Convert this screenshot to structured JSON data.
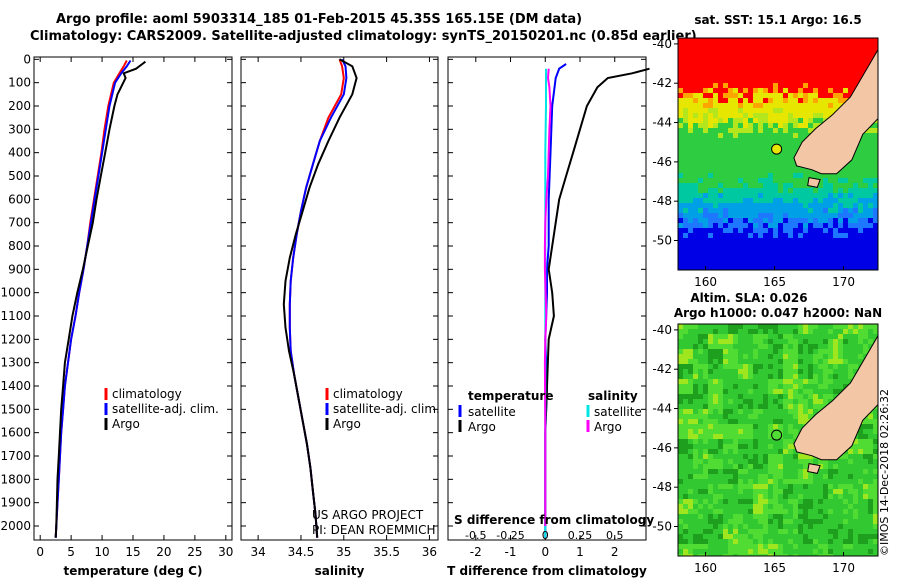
{
  "header": {
    "line1": "Argo profile: aoml 5903314_185 01-Feb-2015 45.35S 165.15E (DM data)",
    "line2": "Climatology: CARS2009. Satellite-adjusted climatology: synTS_20150201.nc (0.85d earlier)"
  },
  "credit": {
    "line1": "US ARGO PROJECT",
    "line2": "PI: DEAN ROEMMICH"
  },
  "stamp": "©IMOS 14-Dec-2018 02:26:32",
  "colors": {
    "climatology": "#ff0000",
    "satellite": "#0000ff",
    "argo": "#000000",
    "sat_salinity": "#00e5e5",
    "argo_salinity": "#ff00ff",
    "land": "#f3c6a5"
  },
  "chart_data": [
    {
      "type": "line",
      "name": "temperature-profile",
      "xlabel": "temperature (deg C)",
      "ylabel": "",
      "xlim": [
        -1,
        31
      ],
      "ylim": [
        2060,
        -10
      ],
      "xticks": [
        0,
        5,
        10,
        15,
        20,
        25,
        30
      ],
      "yticks": [
        0,
        100,
        200,
        300,
        400,
        500,
        600,
        700,
        800,
        900,
        1000,
        1100,
        1200,
        1300,
        1400,
        1500,
        1600,
        1700,
        1800,
        1900,
        2000
      ],
      "legend_entries": [
        "climatology",
        "satellite-adj. clim.",
        "Argo"
      ],
      "series": [
        {
          "name": "climatology",
          "color": "#ff0000",
          "x": [
            14.0,
            13.5,
            12.8,
            11.9,
            11.0,
            10.4,
            9.9,
            9.3,
            8.7,
            8.1,
            7.6,
            7.0,
            6.3,
            5.7,
            5.0,
            4.5,
            4.0,
            3.7,
            3.4,
            3.2,
            3.0,
            2.8,
            2.7,
            2.6,
            2.5
          ],
          "y": [
            5,
            30,
            60,
            100,
            200,
            300,
            400,
            500,
            600,
            700,
            800,
            900,
            1000,
            1100,
            1200,
            1300,
            1400,
            1500,
            1600,
            1700,
            1800,
            1900,
            1950,
            2000,
            2050
          ]
        },
        {
          "name": "satellite-adj. clim.",
          "color": "#0000ff",
          "x": [
            14.6,
            14.0,
            13.1,
            12.1,
            11.2,
            10.6,
            10.0,
            9.4,
            8.8,
            8.2,
            7.6,
            7.0,
            6.3,
            5.7,
            5.0,
            4.5,
            4.0,
            3.7,
            3.4,
            3.2,
            3.0,
            2.8,
            2.7,
            2.6,
            2.5
          ],
          "y": [
            5,
            30,
            60,
            100,
            200,
            300,
            400,
            500,
            600,
            700,
            800,
            900,
            1000,
            1100,
            1200,
            1300,
            1400,
            1500,
            1600,
            1700,
            1800,
            1900,
            1950,
            2000,
            2050
          ]
        },
        {
          "name": "Argo",
          "color": "#000000",
          "x": [
            17.0,
            16.5,
            15.5,
            13.5,
            13.8,
            12.5,
            12.0,
            11.2,
            10.5,
            9.8,
            9.1,
            8.5,
            7.7,
            6.9,
            6.0,
            5.2,
            4.6,
            4.0,
            3.7,
            3.4,
            3.2,
            3.0,
            2.8,
            2.7,
            2.6,
            2.5
          ],
          "y": [
            10,
            20,
            40,
            60,
            80,
            150,
            200,
            300,
            400,
            500,
            600,
            700,
            800,
            900,
            1000,
            1100,
            1200,
            1300,
            1400,
            1500,
            1600,
            1700,
            1800,
            1900,
            2000,
            2050
          ]
        }
      ]
    },
    {
      "type": "line",
      "name": "salinity-profile",
      "xlabel": "salinity",
      "ylabel": "",
      "xlim": [
        33.8,
        36.1
      ],
      "ylim": [
        2060,
        -10
      ],
      "xticks": [
        34,
        34.5,
        35,
        35.5,
        36
      ],
      "legend_entries": [
        "climatology",
        "satellite-adj. clim.",
        "Argo"
      ],
      "series": [
        {
          "name": "climatology",
          "color": "#ff0000",
          "x": [
            34.95,
            34.98,
            35.0,
            34.97,
            34.82,
            34.72,
            34.64,
            34.56,
            34.5,
            34.45,
            34.41,
            34.38,
            34.37,
            34.37,
            34.38,
            34.42,
            34.47,
            34.52,
            34.57,
            34.61,
            34.64,
            34.67,
            34.69
          ],
          "y": [
            0,
            30,
            80,
            150,
            250,
            350,
            450,
            550,
            650,
            750,
            850,
            950,
            1050,
            1150,
            1250,
            1350,
            1450,
            1550,
            1650,
            1750,
            1850,
            1950,
            2050
          ]
        },
        {
          "name": "satellite-adj. clim.",
          "color": "#0000ff",
          "x": [
            34.98,
            35.02,
            35.03,
            35.0,
            34.85,
            34.72,
            34.64,
            34.56,
            34.5,
            34.45,
            34.41,
            34.38,
            34.37,
            34.37,
            34.38,
            34.42,
            34.47,
            34.52,
            34.57,
            34.61,
            34.64,
            34.67,
            34.69
          ],
          "y": [
            0,
            30,
            80,
            150,
            250,
            350,
            450,
            550,
            650,
            750,
            850,
            950,
            1050,
            1150,
            1250,
            1350,
            1450,
            1550,
            1650,
            1750,
            1850,
            1950,
            2050
          ]
        },
        {
          "name": "Argo",
          "color": "#000000",
          "x": [
            34.95,
            35.1,
            35.15,
            35.1,
            34.95,
            34.82,
            34.7,
            34.6,
            34.52,
            34.44,
            34.37,
            34.32,
            34.3,
            34.32,
            34.36,
            34.42,
            34.47,
            34.52,
            34.57,
            34.61,
            34.64,
            34.67,
            34.69
          ],
          "y": [
            0,
            30,
            80,
            150,
            250,
            350,
            450,
            550,
            650,
            750,
            850,
            950,
            1050,
            1150,
            1250,
            1350,
            1450,
            1550,
            1650,
            1750,
            1850,
            1950,
            2050
          ]
        }
      ]
    },
    {
      "type": "line",
      "name": "difference-profile",
      "xlabel": "T difference from climatology",
      "title": "S difference from climatology",
      "xlim": [
        -2.8,
        2.9
      ],
      "ylim": [
        2060,
        -10
      ],
      "xticks": [
        -2,
        -1,
        0,
        1,
        2
      ],
      "top_xticks": [
        -0.5,
        -0.25,
        0,
        0.25,
        0.5
      ],
      "legend_temperature": {
        "heading": "temperature",
        "entries": [
          "satellite",
          "Argo"
        ]
      },
      "legend_salinity": {
        "heading": "salinity",
        "entries": [
          "satellite",
          "Argo"
        ]
      },
      "series": [
        {
          "name": "temperature satellite",
          "color": "#0000ff",
          "x": [
            0.6,
            0.4,
            0.3,
            0.2,
            0.15,
            0.1,
            0.1,
            0.05,
            0.05,
            0.0,
            0.05,
            0.0,
            0.0,
            0.0,
            0.0,
            0.0
          ],
          "y": [
            20,
            40,
            80,
            200,
            400,
            600,
            800,
            900,
            1000,
            1200,
            1400,
            1600,
            1800,
            1900,
            2000,
            2050
          ]
        },
        {
          "name": "temperature Argo",
          "color": "#000000",
          "x": [
            3.0,
            2.5,
            1.8,
            1.5,
            1.2,
            1.0,
            0.8,
            0.6,
            0.4,
            0.3,
            0.2,
            0.1,
            0.2,
            0.25,
            0.1,
            0.05,
            0.0,
            0.0,
            0.0
          ],
          "y": [
            40,
            60,
            80,
            120,
            200,
            300,
            400,
            500,
            600,
            700,
            800,
            900,
            1000,
            1100,
            1200,
            1400,
            1600,
            1800,
            2000
          ]
        },
        {
          "name": "salinity satellite",
          "color": "#00e5e5",
          "x": [
            0.02,
            0.02,
            0.0,
            0.0,
            0.0,
            0.0,
            0.0,
            0.0,
            0.0,
            0.0
          ],
          "y": [
            40,
            200,
            400,
            600,
            800,
            1000,
            1200,
            1500,
            1800,
            2050
          ]
        },
        {
          "name": "salinity Argo",
          "color": "#ff00ff",
          "x": [
            0.1,
            0.08,
            0.12,
            0.15,
            0.12,
            0.1,
            0.08,
            0.03,
            0.0,
            -0.01,
            -0.01,
            0.01,
            0.03,
            0.0,
            -0.01,
            0.0,
            0.0
          ],
          "y": [
            40,
            80,
            120,
            200,
            300,
            400,
            500,
            600,
            700,
            800,
            900,
            1000,
            1100,
            1200,
            1300,
            1600,
            2000
          ]
        }
      ]
    },
    {
      "type": "heatmap",
      "name": "sst-map",
      "title": "sat. SST: 15.1 Argo: 16.5",
      "xticks": [
        160,
        165,
        170
      ],
      "yticks": [
        -40,
        -42,
        -44,
        -46,
        -48,
        -50
      ],
      "xlim": [
        158,
        172.5
      ],
      "ylim": [
        -51.5,
        -39.7
      ],
      "argo_position": {
        "lon": 165.15,
        "lat": -45.35
      }
    },
    {
      "type": "heatmap",
      "name": "sla-map",
      "title_line1": "Altim. SLA: 0.026",
      "title_line2": "Argo h1000: 0.047 h2000: NaN",
      "xticks": [
        160,
        165,
        170
      ],
      "yticks": [
        -40,
        -42,
        -44,
        -46,
        -48,
        -50
      ],
      "xlim": [
        158,
        172.5
      ],
      "ylim": [
        -51.5,
        -39.7
      ],
      "argo_position": {
        "lon": 165.15,
        "lat": -45.35
      }
    }
  ]
}
